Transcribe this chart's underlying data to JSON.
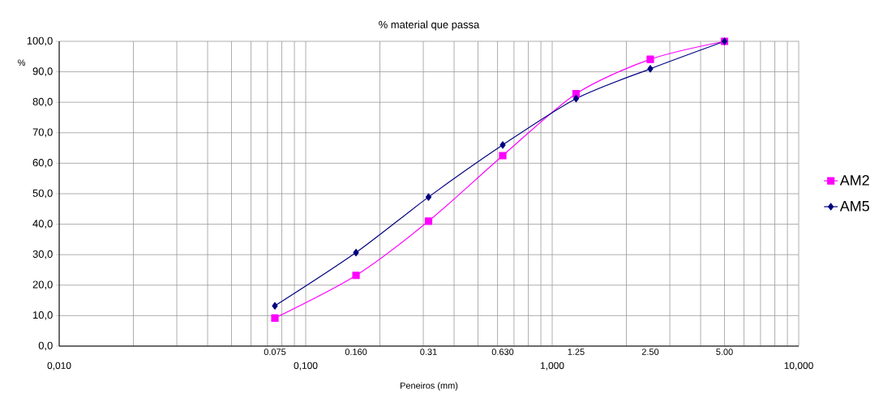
{
  "chart_data": {
    "type": "line",
    "title": "% material que passa",
    "xlabel": "Peneiros (mm)",
    "ylabel": "%",
    "log": "x",
    "grid": true,
    "legend": "right",
    "line_style": "solid",
    "xlim": [
      0.01,
      10
    ],
    "ylim": [
      0,
      100
    ],
    "xticks": [
      {
        "value": 0.01,
        "label": "0,010"
      },
      {
        "value": 0.1,
        "label": "0,100"
      },
      {
        "value": 1,
        "label": "1,000"
      },
      {
        "value": 10,
        "label": "10,000"
      }
    ],
    "yticks": [
      {
        "value": 0,
        "label": "0,0"
      },
      {
        "value": 10,
        "label": "10,0"
      },
      {
        "value": 20,
        "label": "20,0"
      },
      {
        "value": 30,
        "label": "30,0"
      },
      {
        "value": 40,
        "label": "40,0"
      },
      {
        "value": 50,
        "label": "50,0"
      },
      {
        "value": 60,
        "label": "60,0"
      },
      {
        "value": 70,
        "label": "70,0"
      },
      {
        "value": 80,
        "label": "80,0"
      },
      {
        "value": 90,
        "label": "90,0"
      },
      {
        "value": 100,
        "label": "100,0"
      }
    ],
    "x": [
      0.075,
      0.16,
      0.315,
      0.63,
      1.25,
      2.5,
      5
    ],
    "series": [
      {
        "name": "AM2",
        "color": "#ff00ff",
        "marker": "square",
        "values": [
          9.2,
          23.2,
          41.0,
          62.5,
          82.8,
          94.1,
          100
        ]
      },
      {
        "name": "AM5",
        "color": "#000080",
        "marker": "diamond",
        "values": [
          13.2,
          30.7,
          48.9,
          66.0,
          81.2,
          91.0,
          100
        ]
      }
    ],
    "annotations": [
      "0.075",
      "0.160",
      "0.31",
      "0.630",
      "1.25",
      "2.50",
      "5.00"
    ]
  }
}
